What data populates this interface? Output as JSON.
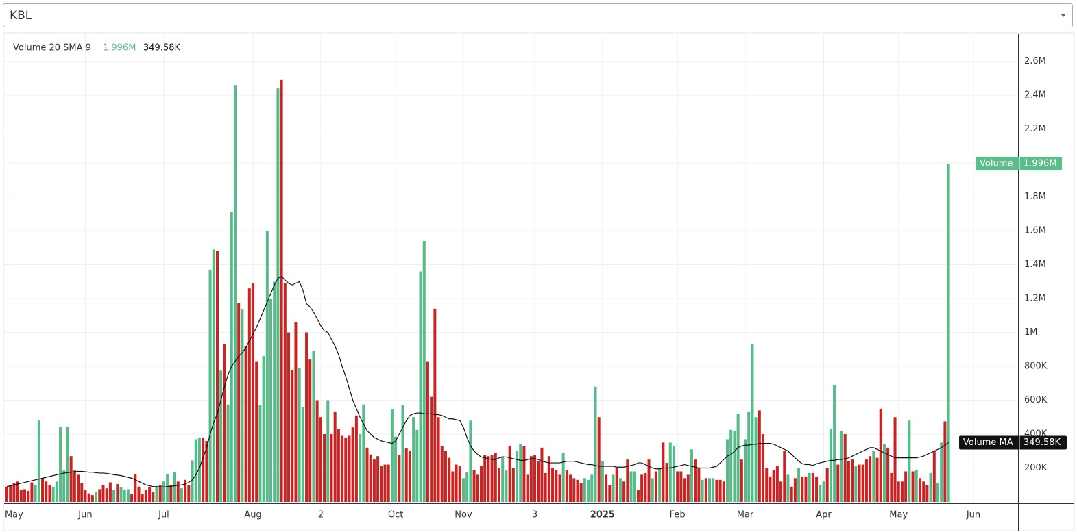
{
  "dropdown": {
    "value": "KBL"
  },
  "chart_data": {
    "type": "bar",
    "legend_title": "Volume 20 SMA 9",
    "ylim": [
      0,
      2760000
    ],
    "yticks": [
      {
        "value": 200000,
        "label": "200K"
      },
      {
        "value": 400000,
        "label": "400K"
      },
      {
        "value": 600000,
        "label": "600K"
      },
      {
        "value": 800000,
        "label": "800K"
      },
      {
        "value": 1000000,
        "label": "1M"
      },
      {
        "value": 1200000,
        "label": "1.2M"
      },
      {
        "value": 1400000,
        "label": "1.4M"
      },
      {
        "value": 1600000,
        "label": "1.6M"
      },
      {
        "value": 1800000,
        "label": "1.8M"
      },
      {
        "value": 2000000,
        "label": "2M"
      },
      {
        "value": 2200000,
        "label": "2.2M"
      },
      {
        "value": 2400000,
        "label": "2.4M"
      },
      {
        "value": 2600000,
        "label": "2.6M"
      }
    ],
    "hidden_ytick_labels": [
      "2M"
    ],
    "grid": true,
    "categories": [
      null,
      null,
      "May",
      null,
      null,
      null,
      null,
      null,
      null,
      null,
      null,
      null,
      null,
      null,
      null,
      null,
      null,
      null,
      null,
      null,
      null,
      null,
      "Jun",
      null,
      null,
      null,
      null,
      null,
      null,
      null,
      null,
      null,
      null,
      null,
      null,
      null,
      null,
      null,
      null,
      null,
      null,
      null,
      null,
      null,
      "Jul",
      null,
      null,
      null,
      null,
      null,
      null,
      null,
      null,
      null,
      null,
      null,
      null,
      null,
      null,
      null,
      null,
      null,
      null,
      null,
      null,
      null,
      null,
      null,
      null,
      "Aug",
      null,
      null,
      null,
      null,
      null,
      null,
      null,
      null,
      null,
      null,
      null,
      null,
      null,
      null,
      null,
      null,
      null,
      null,
      "2",
      null,
      null,
      null,
      null,
      null,
      null,
      null,
      null,
      null,
      null,
      null,
      null,
      null,
      null,
      null,
      null,
      null,
      null,
      null,
      null,
      "Oct",
      null,
      null,
      null,
      null,
      null,
      null,
      null,
      null,
      null,
      null,
      null,
      null,
      null,
      null,
      null,
      null,
      null,
      null,
      "Nov",
      null,
      null,
      null,
      null,
      null,
      null,
      null,
      null,
      null,
      null,
      null,
      null,
      null,
      null,
      null,
      null,
      null,
      null,
      null,
      "3",
      null,
      null,
      null,
      null,
      null,
      null,
      null,
      null,
      null,
      null,
      null,
      null,
      null,
      null,
      null,
      null,
      null,
      null,
      "2025",
      null,
      null,
      null,
      null,
      null,
      null,
      null,
      null,
      null,
      null,
      null,
      null,
      null,
      null,
      null,
      null,
      null,
      null,
      null,
      null,
      "Feb",
      null,
      null,
      null,
      null,
      null,
      null,
      null,
      null,
      null,
      null,
      null,
      null,
      null,
      null,
      null,
      null,
      null,
      null,
      "Mar",
      null,
      null,
      null,
      null,
      null,
      null,
      null,
      null,
      null,
      null,
      null,
      null,
      null,
      null,
      null,
      null,
      null,
      null,
      null,
      null,
      null,
      "Apr",
      null,
      null,
      null,
      null,
      null,
      null,
      null,
      null,
      null,
      null,
      null,
      null,
      null,
      null,
      null,
      null,
      null,
      null,
      null,
      null,
      "May",
      null,
      null,
      null,
      null,
      null,
      null,
      null,
      null,
      null,
      null,
      null,
      null,
      null,
      null,
      null,
      null,
      null,
      null,
      null,
      null,
      "Jun"
    ],
    "series": [
      {
        "name": "Volume",
        "last_label": "1.996M",
        "color": "#5bbd8b",
        "values": [
          90000,
          100000,
          110000,
          120000,
          70000,
          75000,
          65000,
          115000,
          100000,
          480000,
          140000,
          120000,
          100000,
          90000,
          120000,
          445000,
          185000,
          445000,
          270000,
          185000,
          160000,
          110000,
          70000,
          50000,
          40000,
          60000,
          75000,
          100000,
          80000,
          115000,
          70000,
          105000,
          85000,
          70000,
          75000,
          45000,
          165000,
          90000,
          45000,
          70000,
          85000,
          60000,
          90000,
          100000,
          120000,
          165000,
          100000,
          175000,
          120000,
          80000,
          130000,
          100000,
          245000,
          370000,
          380000,
          380000,
          360000,
          1370000,
          1490000,
          1480000,
          775000,
          930000,
          575000,
          1710000,
          2460000,
          1175000,
          1135000,
          920000,
          1260000,
          1290000,
          830000,
          570000,
          860000,
          1600000,
          1200000,
          1300000,
          2440000,
          2490000,
          1290000,
          1000000,
          780000,
          1060000,
          790000,
          560000,
          1000000,
          840000,
          890000,
          600000,
          500000,
          400000,
          600000,
          400000,
          530000,
          430000,
          390000,
          380000,
          390000,
          440000,
          510000,
          400000,
          575000,
          320000,
          280000,
          250000,
          270000,
          210000,
          220000,
          220000,
          545000,
          385000,
          275000,
          570000,
          315000,
          300000,
          500000,
          425000,
          1360000,
          1540000,
          830000,
          620000,
          1140000,
          500000,
          330000,
          300000,
          260000,
          180000,
          220000,
          210000,
          140000,
          175000,
          480000,
          190000,
          160000,
          210000,
          275000,
          270000,
          275000,
          290000,
          200000,
          270000,
          185000,
          330000,
          200000,
          300000,
          340000,
          330000,
          160000,
          270000,
          275000,
          240000,
          320000,
          170000,
          270000,
          200000,
          190000,
          160000,
          290000,
          190000,
          160000,
          140000,
          130000,
          110000,
          140000,
          130000,
          160000,
          680000,
          500000,
          240000,
          160000,
          100000,
          160000,
          200000,
          140000,
          120000,
          250000,
          180000,
          180000,
          70000,
          160000,
          170000,
          250000,
          140000,
          180000,
          200000,
          350000,
          230000,
          350000,
          330000,
          180000,
          180000,
          140000,
          160000,
          310000,
          250000,
          200000,
          130000,
          140000,
          140000,
          140000,
          130000,
          130000,
          120000,
          370000,
          425000,
          420000,
          520000,
          250000,
          370000,
          530000,
          930000,
          500000,
          540000,
          400000,
          200000,
          150000,
          190000,
          210000,
          120000,
          300000,
          160000,
          90000,
          140000,
          200000,
          150000,
          150000,
          170000,
          170000,
          150000,
          100000,
          120000,
          200000,
          430000,
          690000,
          220000,
          420000,
          400000,
          240000,
          250000,
          210000,
          220000,
          220000,
          250000,
          270000,
          300000,
          260000,
          550000,
          340000,
          320000,
          170000,
          500000,
          120000,
          120000,
          180000,
          480000,
          180000,
          190000,
          140000,
          120000,
          100000,
          170000,
          300000,
          110000,
          350000,
          475000,
          1996000,
          null,
          null,
          null,
          null,
          null,
          null,
          null
        ],
        "colors": [
          "#c22",
          "#c22",
          "#c22",
          "#c22",
          "#c22",
          "#c22",
          "#c22",
          "#c22",
          "#5b8",
          "#5b8",
          "#c22",
          "#c22",
          "#c22",
          "#5b8",
          "#5b8",
          "#5b8",
          "#5b8",
          "#5b8",
          "#c22",
          "#c22",
          "#c22",
          "#c22",
          "#c22",
          "#c22",
          "#c22",
          "#5b8",
          "#c22",
          "#c22",
          "#c22",
          "#c22",
          "#5b8",
          "#c22",
          "#5b8",
          "#5b8",
          "#5b8",
          "#c22",
          "#c22",
          "#c22",
          "#c22",
          "#c22",
          "#c22",
          "#c22",
          "#5b8",
          "#c22",
          "#5b8",
          "#5b8",
          "#c22",
          "#5b8",
          "#c22",
          "#5b8",
          "#c22",
          "#c22",
          "#5b8",
          "#5b8",
          "#5b8",
          "#c22",
          "#c22",
          "#5b8",
          "#5b8",
          "#c22",
          "#5b8",
          "#c22",
          "#5b8",
          "#5b8",
          "#5b8",
          "#c22",
          "#5b8",
          "#c22",
          "#c22",
          "#c22",
          "#c22",
          "#5b8",
          "#5b8",
          "#5b8",
          "#5b8",
          "#5b8",
          "#5b8",
          "#c22",
          "#c22",
          "#c22",
          "#c22",
          "#c22",
          "#5b8",
          "#5b8",
          "#c22",
          "#c22",
          "#5b8",
          "#c22",
          "#c22",
          "#c22",
          "#5b8",
          "#c22",
          "#c22",
          "#c22",
          "#c22",
          "#c22",
          "#c22",
          "#c22",
          "#c22",
          "#5b8",
          "#5b8",
          "#c22",
          "#c22",
          "#c22",
          "#c22",
          "#c22",
          "#c22",
          "#c22",
          "#5b8",
          "#5b8",
          "#c22",
          "#5b8",
          "#c22",
          "#c22",
          "#5b8",
          "#5b8",
          "#5b8",
          "#5b8",
          "#c22",
          "#c22",
          "#c22",
          "#c22",
          "#c22",
          "#c22",
          "#c22",
          "#c22",
          "#c22",
          "#c22",
          "#5b8",
          "#5b8",
          "#5b8",
          "#c22",
          "#c22",
          "#c22",
          "#c22",
          "#c22",
          "#c22",
          "#c22",
          "#c22",
          "#5b8",
          "#5b8",
          "#c22",
          "#c22",
          "#5b8",
          "#5b8",
          "#c22",
          "#c22",
          "#c22",
          "#c22",
          "#c22",
          "#c22",
          "#c22",
          "#c22",
          "#c22",
          "#c22",
          "#c22",
          "#5b8",
          "#c22",
          "#c22",
          "#c22",
          "#c22",
          "#c22",
          "#5b8",
          "#5b8",
          "#5b8",
          "#5b8",
          "#c22",
          "#5b8",
          "#c22",
          "#c22",
          "#5b8",
          "#c22",
          "#5b8",
          "#c22",
          "#c22",
          "#5b8",
          "#5b8",
          "#c22",
          "#c22",
          "#c22",
          "#c22",
          "#5b8",
          "#c22",
          "#5b8",
          "#c22",
          "#c22",
          "#5b8",
          "#5b8",
          "#c22",
          "#c22",
          "#c22",
          "#c22",
          "#5b8",
          "#c22",
          "#c22",
          "#5b8",
          "#c22",
          "#5b8",
          "#5b8",
          "#c22",
          "#c22",
          "#c22",
          "#5b8",
          "#5b8",
          "#5b8",
          "#5b8",
          "#c22",
          "#5b8",
          "#5b8",
          "#5b8",
          "#5b8",
          "#c22",
          "#c22",
          "#c22",
          "#c22",
          "#c22",
          "#c22",
          "#c22",
          "#c22",
          "#5b8",
          "#c22",
          "#c22",
          "#5b8",
          "#c22",
          "#c22",
          "#5b8",
          "#c22",
          "#c22",
          "#5b8",
          "#5b8",
          "#c22",
          "#5b8",
          "#5b8",
          "#c22",
          "#5b8",
          "#c22",
          "#c22",
          "#c22",
          "#5b8",
          "#c22",
          "#c22",
          "#c22",
          "#c22",
          "#5b8",
          "#c22",
          "#c22",
          "#5b8",
          "#c22",
          "#c22",
          "#c22",
          "#c22",
          "#c22",
          "#c22",
          "#5b8",
          "#c22",
          "#5b8",
          "#c22",
          "#c22",
          "#c22",
          "#5b8",
          "#c22",
          "#5b8",
          "#5b8",
          "#c22",
          "#5b8",
          null,
          null,
          null,
          null,
          null,
          null,
          null
        ]
      },
      {
        "name": "Volume MA",
        "last_label": "349.58K",
        "color": "#111111",
        "values": [
          90000,
          95000,
          100000,
          105000,
          110000,
          115000,
          120000,
          125000,
          130000,
          135000,
          140000,
          145000,
          150000,
          155000,
          160000,
          165000,
          170000,
          172000,
          175000,
          178000,
          180000,
          180000,
          178000,
          175000,
          175000,
          172000,
          170000,
          170000,
          168000,
          165000,
          160000,
          158000,
          155000,
          150000,
          145000,
          140000,
          130000,
          120000,
          110000,
          100000,
          95000,
          90000,
          90000,
          88000,
          88000,
          90000,
          92000,
          95000,
          98000,
          100000,
          105000,
          115000,
          130000,
          160000,
          200000,
          260000,
          320000,
          400000,
          470000,
          520000,
          600000,
          680000,
          750000,
          800000,
          830000,
          860000,
          880000,
          910000,
          950000,
          990000,
          1030000,
          1080000,
          1130000,
          1180000,
          1230000,
          1280000,
          1320000,
          1330000,
          1310000,
          1290000,
          1280000,
          1290000,
          1300000,
          1250000,
          1170000,
          1150000,
          1120000,
          1080000,
          1040000,
          1010000,
          1000000,
          960000,
          920000,
          870000,
          800000,
          740000,
          670000,
          600000,
          550000,
          500000,
          460000,
          420000,
          400000,
          380000,
          370000,
          360000,
          355000,
          350000,
          345000,
          360000,
          400000,
          440000,
          480000,
          510000,
          520000,
          525000,
          525000,
          520000,
          520000,
          520000,
          515000,
          515000,
          510000,
          500000,
          490000,
          490000,
          485000,
          480000,
          440000,
          380000,
          330000,
          300000,
          280000,
          265000,
          260000,
          255000,
          250000,
          250000,
          260000,
          265000,
          265000,
          260000,
          255000,
          250000,
          245000,
          245000,
          250000,
          255000,
          255000,
          250000,
          240000,
          235000,
          230000,
          230000,
          230000,
          230000,
          235000,
          240000,
          240000,
          240000,
          235000,
          230000,
          225000,
          220000,
          220000,
          215000,
          210000,
          210000,
          210000,
          210000,
          210000,
          205000,
          205000,
          205000,
          210000,
          215000,
          220000,
          230000,
          230000,
          220000,
          210000,
          200000,
          195000,
          195000,
          200000,
          200000,
          200000,
          205000,
          210000,
          215000,
          220000,
          215000,
          210000,
          205000,
          200000,
          200000,
          200000,
          200000,
          205000,
          210000,
          230000,
          250000,
          270000,
          280000,
          300000,
          320000,
          330000,
          335000,
          335000,
          340000,
          340000,
          345000,
          345000,
          345000,
          345000,
          340000,
          330000,
          320000,
          310000,
          300000,
          280000,
          260000,
          240000,
          225000,
          220000,
          220000,
          215000,
          225000,
          230000,
          235000,
          240000,
          245000,
          245000,
          250000,
          250000,
          255000,
          260000,
          270000,
          280000,
          290000,
          300000,
          310000,
          320000,
          320000,
          310000,
          300000,
          290000,
          280000,
          270000,
          260000,
          260000,
          260000,
          260000,
          260000,
          260000,
          260000,
          265000,
          270000,
          280000,
          290000,
          300000,
          310000,
          320000,
          335000,
          349580,
          null,
          null,
          null,
          null,
          null,
          null,
          null
        ]
      }
    ]
  }
}
